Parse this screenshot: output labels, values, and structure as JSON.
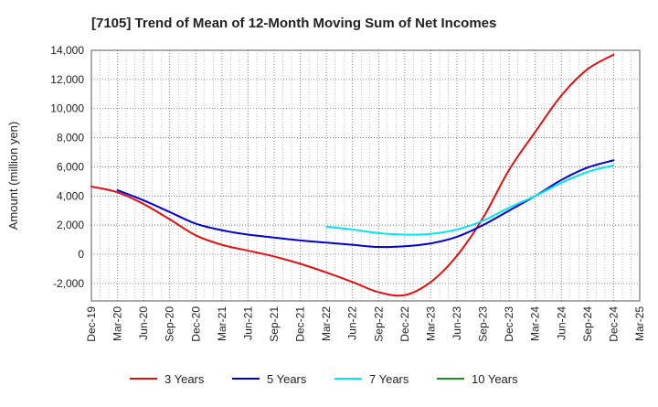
{
  "chart_data": {
    "type": "line",
    "title": "[7105]  Trend of Mean of 12-Month Moving Sum of Net Incomes",
    "ylabel": "Amount (million yen)",
    "xlabel": "",
    "x_ticks": [
      "Dec-19",
      "Mar-20",
      "Jun-20",
      "Sep-20",
      "Dec-20",
      "Mar-21",
      "Jun-21",
      "Sep-21",
      "Dec-21",
      "Mar-22",
      "Jun-22",
      "Sep-22",
      "Dec-22",
      "Mar-23",
      "Jun-23",
      "Sep-23",
      "Dec-23",
      "Mar-24",
      "Jun-24",
      "Sep-24",
      "Dec-24",
      "Mar-25"
    ],
    "y_ticks": [
      -2000,
      0,
      2000,
      4000,
      6000,
      8000,
      10000,
      12000,
      14000
    ],
    "y_tick_labels": [
      "-2,000",
      "0",
      "2,000",
      "4,000",
      "6,000",
      "8,000",
      "10,000",
      "12,000",
      "14,000"
    ],
    "ylim": [
      -3200,
      14000
    ],
    "grid": true,
    "legend_position": "bottom",
    "series": [
      {
        "name": "3 Years",
        "color": "#dd1111",
        "x": [
          "Dec-19",
          "Mar-20",
          "Jun-20",
          "Sep-20",
          "Dec-20",
          "Mar-21",
          "Jun-21",
          "Sep-21",
          "Dec-21",
          "Mar-22",
          "Jun-22",
          "Sep-22",
          "Dec-22",
          "Mar-23",
          "Jun-23",
          "Sep-23",
          "Dec-23",
          "Mar-24",
          "Jun-24",
          "Sep-24",
          "Dec-24"
        ],
        "values": [
          4650,
          4250,
          3450,
          2400,
          1300,
          650,
          250,
          -150,
          -650,
          -1250,
          -1900,
          -2600,
          -2800,
          -1900,
          -100,
          2500,
          5800,
          8400,
          10900,
          12700,
          13700
        ]
      },
      {
        "name": "5 Years",
        "color": "#0000cc",
        "x": [
          "Mar-20",
          "Jun-20",
          "Sep-20",
          "Dec-20",
          "Mar-21",
          "Jun-21",
          "Sep-21",
          "Dec-21",
          "Mar-22",
          "Jun-22",
          "Sep-22",
          "Dec-22",
          "Mar-23",
          "Jun-23",
          "Sep-23",
          "Dec-23",
          "Mar-24",
          "Jun-24",
          "Sep-24",
          "Dec-24"
        ],
        "values": [
          4400,
          3700,
          2900,
          2100,
          1650,
          1350,
          1150,
          950,
          800,
          650,
          500,
          550,
          750,
          1200,
          2000,
          3000,
          4000,
          5100,
          5950,
          6450
        ]
      },
      {
        "name": "7 Years",
        "color": "#00e5ee",
        "x": [
          "Mar-22",
          "Jun-22",
          "Sep-22",
          "Dec-22",
          "Mar-23",
          "Jun-23",
          "Sep-23",
          "Dec-23",
          "Mar-24",
          "Jun-24",
          "Sep-24",
          "Dec-24"
        ],
        "values": [
          1900,
          1700,
          1450,
          1350,
          1400,
          1700,
          2300,
          3200,
          4000,
          4900,
          5650,
          6100
        ]
      },
      {
        "name": "10 Years",
        "color": "#228b22",
        "x": [],
        "values": []
      }
    ]
  }
}
